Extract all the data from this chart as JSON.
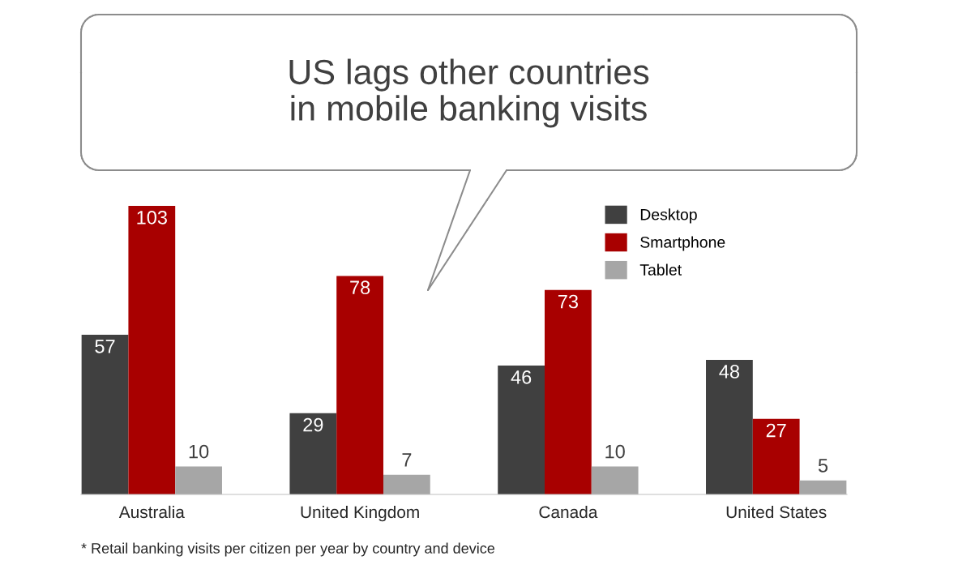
{
  "chart_data": {
    "type": "bar",
    "title": "US lags other countries\nin mobile banking visits",
    "categories": [
      "Australia",
      "United Kingdom",
      "Canada",
      "United States"
    ],
    "series": [
      {
        "name": "Desktop",
        "color": "#404040",
        "values": [
          57,
          29,
          46,
          48
        ]
      },
      {
        "name": "Smartphone",
        "color": "#a80000",
        "values": [
          103,
          78,
          73,
          27
        ]
      },
      {
        "name": "Tablet",
        "color": "#a6a6a6",
        "values": [
          10,
          7,
          10,
          5
        ]
      }
    ],
    "data_labels": true,
    "legend": "top right",
    "grid": false,
    "annotations": [
      "* Retail banking visits per citizen per year by country and device"
    ]
  }
}
